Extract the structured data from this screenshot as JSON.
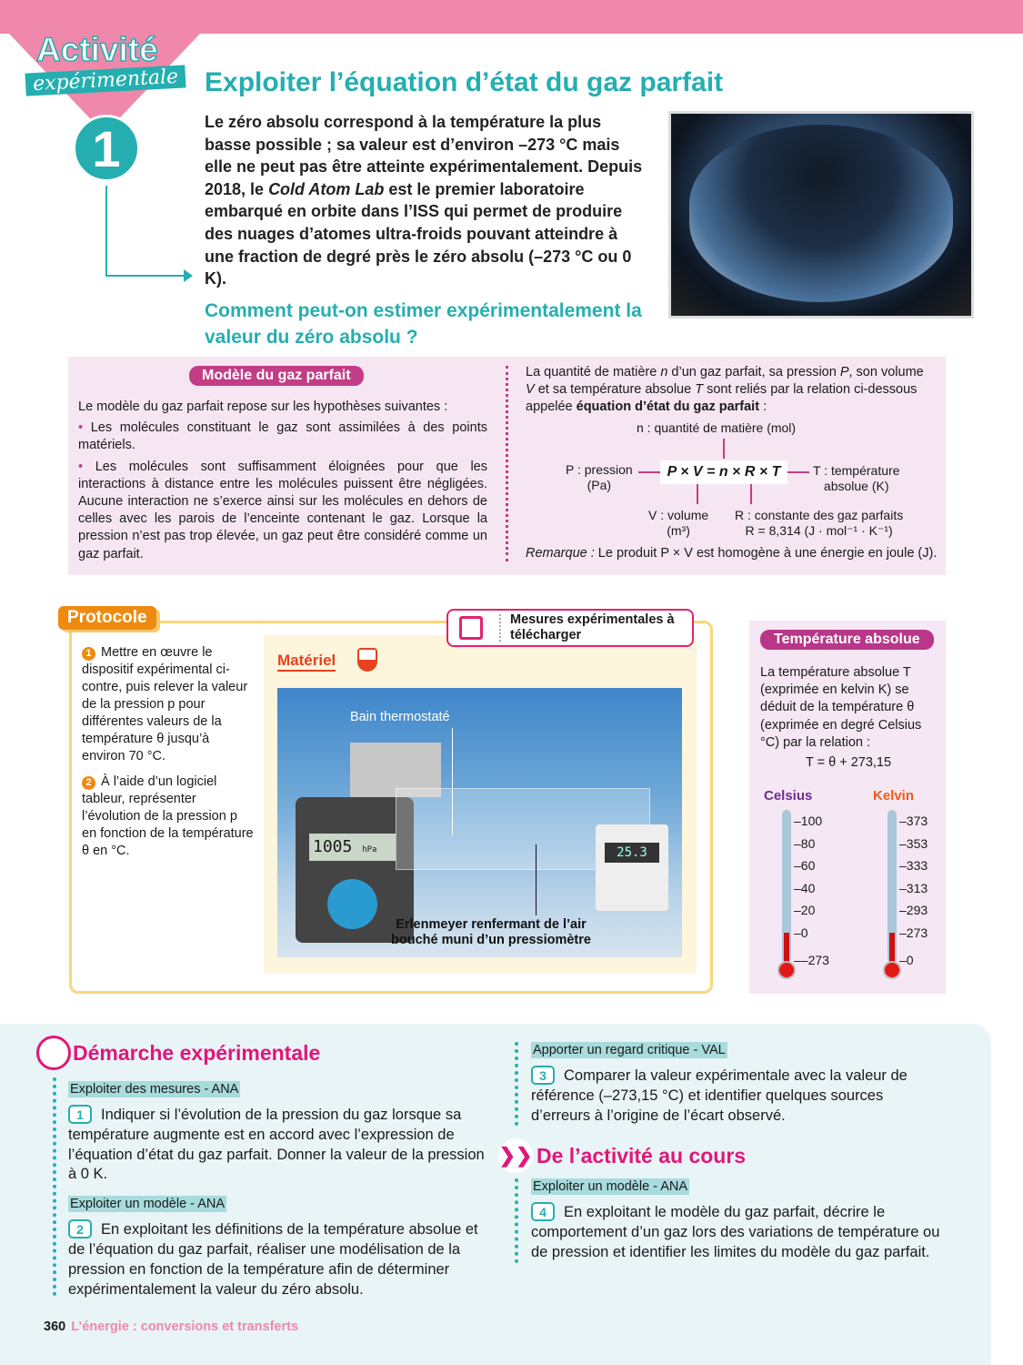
{
  "header": {
    "badge_title": "Activité",
    "badge_subtitle": "expérimentale",
    "activity_number": "1",
    "title": "Exploiter l’équation d’état du gaz parfait"
  },
  "intro": {
    "text_before": "Le zéro absolu correspond à la température la plus basse possible ; sa valeur est d’environ –273 °C mais elle ne peut pas être atteinte expérimentalement. Depuis 2018, le ",
    "text_italic": "Cold Atom Lab",
    "text_after": " est le premier laboratoire embarqué en orbite dans l’ISS qui permet de produire des nuages d’atomes ultra-froids pouvant atteindre à une fraction de degré près le zéro absolu (–273 °C ou 0 K).",
    "question": "Comment peut-on estimer expérimentalement la valeur du zéro absolu ?"
  },
  "model": {
    "badge": "Modèle du gaz parfait",
    "intro": "Le modèle du gaz parfait repose sur les hypothèses suivantes :",
    "bullets": [
      "Les molécules constituant le gaz sont assimilées à des points matériels.",
      "Les molécules sont suffisamment éloignées pour que les interactions à distance entre les molécules puissent être négligées. Aucune interaction ne s’exerce ainsi sur les molécules en dehors de celles avec les parois de l’enceinte contenant le gaz. Lorsque la pression n’est pas trop élevée, un gaz peut être considéré comme un gaz parfait."
    ],
    "eq_intro_1": "La quantité de matière ",
    "eq_intro_n": "n",
    "eq_intro_2": " d’un gaz parfait, sa pression ",
    "eq_intro_P": "P",
    "eq_intro_3": ", son volume ",
    "eq_intro_V": "V",
    "eq_intro_4": " et sa température absolue ",
    "eq_intro_T": "T",
    "eq_intro_5": " sont reliés par la relation ci-dessous appelée ",
    "eq_intro_bold": "équation d’état du gaz parfait",
    "eq_intro_6": " :",
    "equation": "P × V = n × R × T",
    "label_n": "n : quantité de matière (mol)",
    "label_P": "P : pression",
    "label_P_unit": "(Pa)",
    "label_T": "T : température",
    "label_T_unit": "absolue (K)",
    "label_V": "V : volume",
    "label_V_unit": "(m³)",
    "label_R": "R : constante des gaz parfaits",
    "label_R_value": "R = 8,314 (J · mol⁻¹ · K⁻¹)",
    "remark_label": "Remarque :",
    "remark": " Le produit P × V est homogène à une énergie en joule (J)."
  },
  "protocol": {
    "badge": "Protocole",
    "steps": [
      {
        "num": "1",
        "text": "Mettre en œuvre le dispositif expérimental ci-contre, puis relever la valeur de la pression p pour différentes valeurs de la température θ jusqu’à environ 70 °C."
      },
      {
        "num": "2",
        "text": "À l’aide d’un logiciel tableur, représenter l’évolution de la pression p en fonction de la température θ en °C."
      }
    ],
    "download": "Mesures expérimentales à télécharger",
    "materiel": "Matériel",
    "photo_label_bath": "Bain thermostaté",
    "photo_label_erlen": "Erlenmeyer renfermant de l’air bouché muni d’un pressiomètre",
    "display_pressure": "1005",
    "display_unit": "hPa",
    "display_temp": "25.3"
  },
  "temperature": {
    "badge": "Température absolue",
    "text": "La température absolue T (exprimée en kelvin K) se déduit de la température θ (exprimée en degré Celsius °C) par la relation :",
    "equation": "T = θ + 273,15",
    "celsius_label": "Celsius",
    "kelvin_label": "Kelvin",
    "celsius_ticks": [
      "100",
      "80",
      "60",
      "40",
      "20",
      "0",
      "–273"
    ],
    "kelvin_ticks": [
      "373",
      "353",
      "333",
      "313",
      "293",
      "273",
      "0"
    ],
    "celsius_color": "#6b2f8e",
    "kelvin_color": "#f05a14"
  },
  "demarche": {
    "title": "Démarche expérimentale",
    "items": [
      {
        "tag": "Exploiter des mesures - ANA",
        "num": "1",
        "text": "Indiquer si l’évolution de la pression du gaz lorsque sa température augmente est en accord avec l’expression de l’équation d’état du gaz parfait. Donner la valeur de la pression à 0 K."
      },
      {
        "tag": "Exploiter un modèle - ANA",
        "num": "2",
        "text": "En exploitant les définitions de la température absolue et de l’équation du gaz parfait, réaliser une modélisation de la pression en fonction de la température afin de déterminer expérimentalement la valeur du zéro absolu."
      },
      {
        "tag": "Apporter un regard critique - VAL",
        "num": "3",
        "text": "Comparer la valeur expérimentale avec la valeur de référence (–273,15 °C) et identifier quelques sources d’erreurs à l’origine de l’écart observé."
      }
    ]
  },
  "cours": {
    "title": "De l’activité au cours",
    "items": [
      {
        "tag": "Exploiter un modèle - ANA",
        "num": "4",
        "text": "En exploitant le modèle du gaz parfait, décrire le comportement d’un gaz lors des variations de température ou de pression et identifier les limites du modèle du gaz parfait."
      }
    ]
  },
  "footer": {
    "page": "360",
    "chapter": "L’énergie : conversions et transferts"
  }
}
